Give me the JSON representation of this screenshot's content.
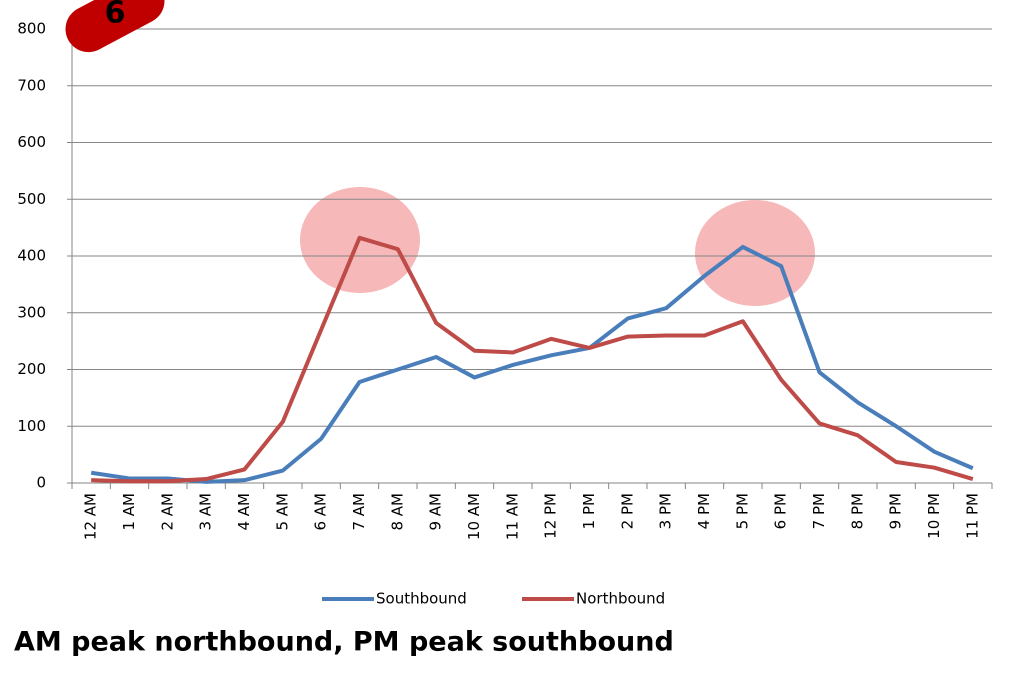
{
  "badge": "6",
  "chart_data": {
    "type": "line",
    "title": "AM peak northbound, PM peak southbound",
    "categories": [
      "12 AM",
      "1 AM",
      "2 AM",
      "3 AM",
      "4 AM",
      "5 AM",
      "6 AM",
      "7 AM",
      "8 AM",
      "9 AM",
      "10 AM",
      "11 AM",
      "12 PM",
      "1 PM",
      "2 PM",
      "3 PM",
      "4 PM",
      "5 PM",
      "6 PM",
      "7 PM",
      "8 PM",
      "9 PM",
      "10 PM",
      "11 PM"
    ],
    "series": [
      {
        "name": "Southbound",
        "color": "#4a7ebb",
        "values": [
          18,
          8,
          8,
          2,
          5,
          22,
          78,
          178,
          200,
          222,
          186,
          208,
          225,
          238,
          290,
          308,
          365,
          416,
          382,
          195,
          142,
          100,
          55,
          26
        ]
      },
      {
        "name": "Northbound",
        "color": "#be4b48",
        "values": [
          5,
          3,
          3,
          7,
          24,
          108,
          270,
          432,
          412,
          282,
          233,
          230,
          254,
          238,
          258,
          260,
          260,
          285,
          182,
          105,
          84,
          37,
          27,
          7
        ]
      }
    ],
    "ylim": [
      0,
      800
    ],
    "yticks": [
      0,
      100,
      200,
      300,
      400,
      500,
      600,
      700,
      800
    ],
    "grid": true,
    "legend": "bottom"
  }
}
